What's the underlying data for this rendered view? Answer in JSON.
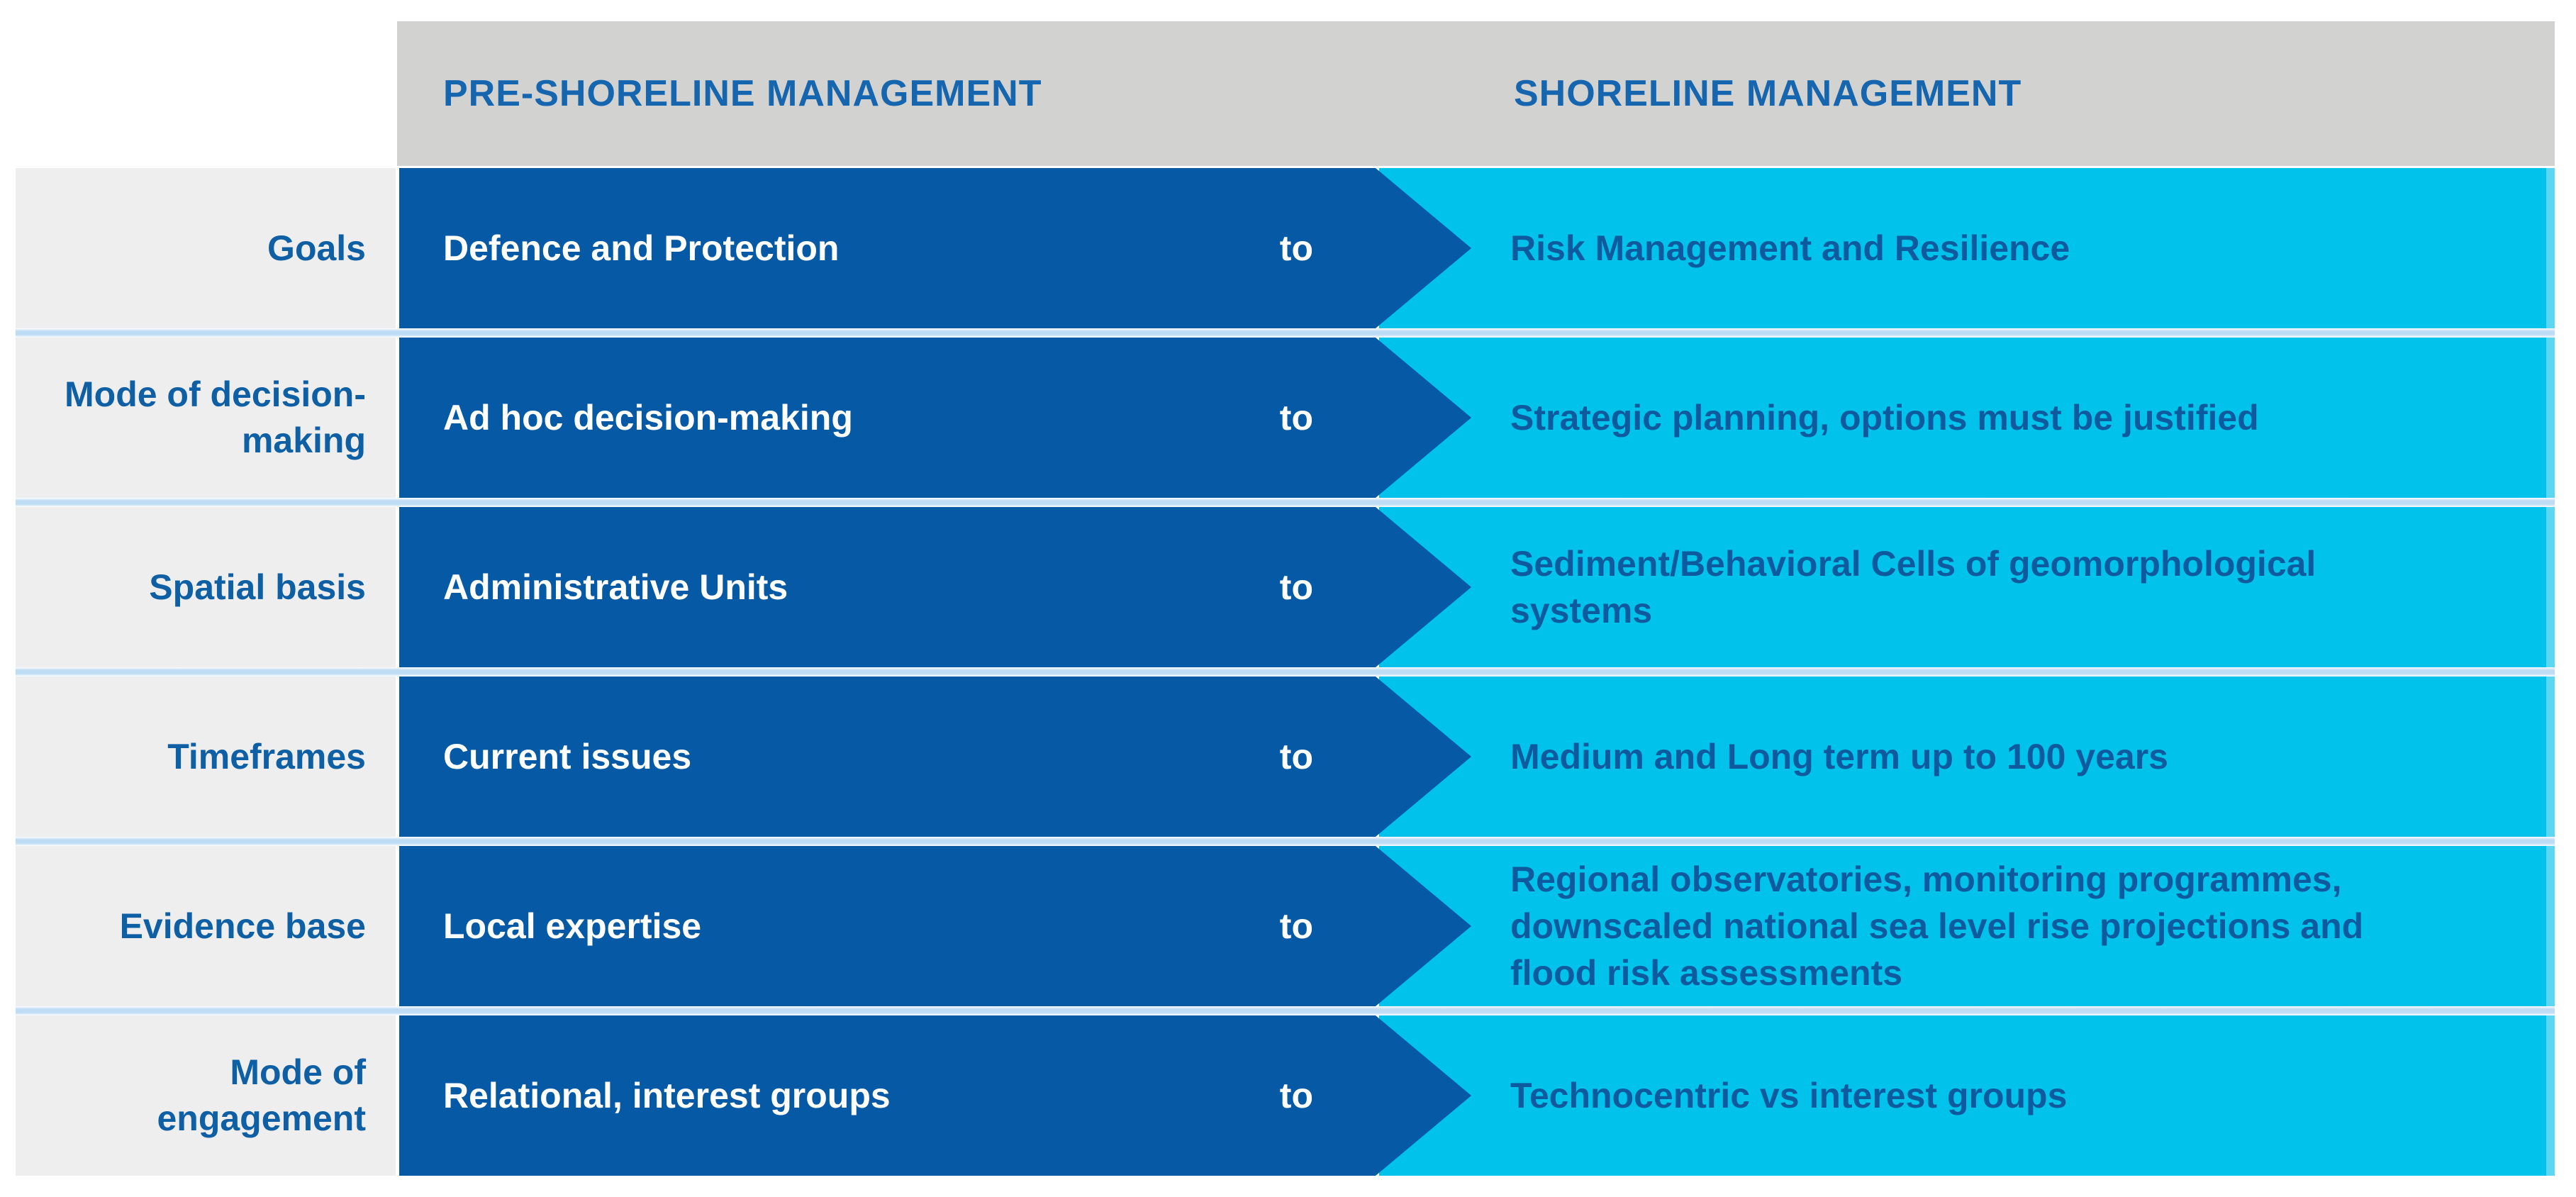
{
  "header": {
    "pre_label": "PRE-SHORELINE MANAGEMENT",
    "shore_label": "SHORELINE MANAGEMENT"
  },
  "connector_label": "to",
  "rows": [
    {
      "category": "Goals",
      "pre": "Defence and Protection",
      "shore": "Risk Management and Resilience"
    },
    {
      "category": "Mode of decision-making",
      "pre": "Ad hoc decision-making",
      "shore": "Strategic planning, options must be justified"
    },
    {
      "category": "Spatial basis",
      "pre": "Administrative Units",
      "shore": "Sediment/Behavioral Cells of geomorphological systems"
    },
    {
      "category": "Timeframes",
      "pre": "Current issues",
      "shore": "Medium and Long term up to 100 years"
    },
    {
      "category": "Evidence base",
      "pre": "Local expertise",
      "shore": "Regional observatories, monitoring programmes, downscaled national sea level rise projections and flood risk assessments"
    },
    {
      "category": "Mode of engagement",
      "pre": "Relational, interest groups",
      "shore": "Technocentric vs interest groups"
    }
  ],
  "colors": {
    "arrow_blue": "#0659a5",
    "shoreline_cyan": "#00c2ea",
    "header_gray": "#d2d2d1",
    "category_gray": "#eeeeef",
    "separator_blue": "#bfdcf5",
    "heading_text_blue": "#1565af",
    "body_text_blue": "#0d5a9e",
    "arrow_text_white": "#ffffff"
  }
}
